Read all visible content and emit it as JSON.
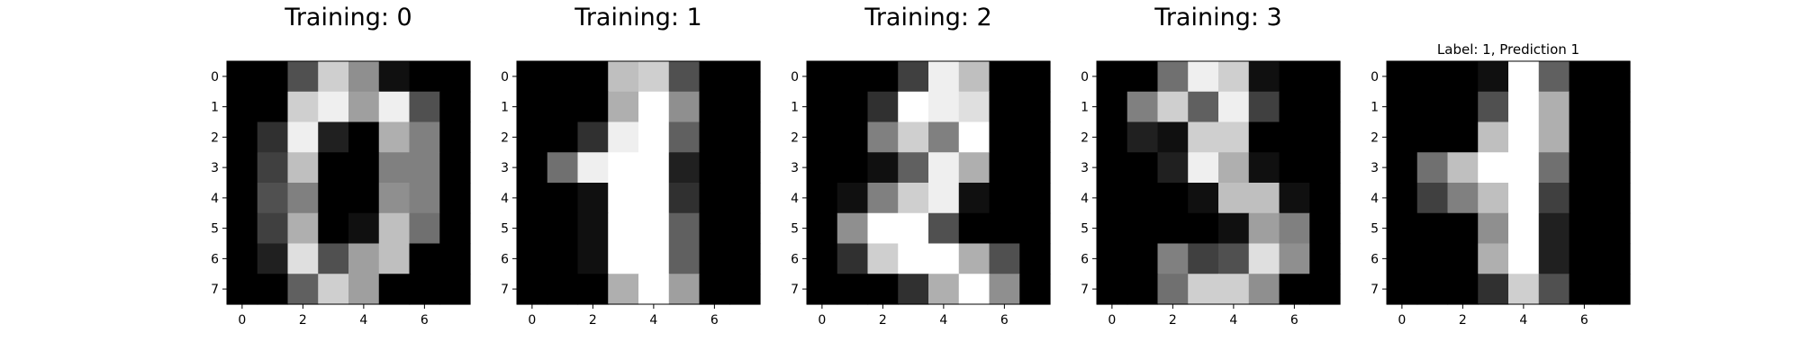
{
  "chart_data": [
    {
      "type": "heatmap",
      "title": "Training: 0",
      "colormap": "gray",
      "value_range": [
        0,
        16
      ],
      "x_ticks": [
        "0",
        "2",
        "4",
        "6"
      ],
      "y_ticks": [
        "0",
        "1",
        "2",
        "3",
        "4",
        "5",
        "6",
        "7"
      ],
      "values": [
        [
          0,
          0,
          5,
          13,
          9,
          1,
          0,
          0
        ],
        [
          0,
          0,
          13,
          15,
          10,
          15,
          5,
          0
        ],
        [
          0,
          3,
          15,
          2,
          0,
          11,
          8,
          0
        ],
        [
          0,
          4,
          12,
          0,
          0,
          8,
          8,
          0
        ],
        [
          0,
          5,
          8,
          0,
          0,
          9,
          8,
          0
        ],
        [
          0,
          4,
          11,
          0,
          1,
          12,
          7,
          0
        ],
        [
          0,
          2,
          14,
          5,
          10,
          12,
          0,
          0
        ],
        [
          0,
          0,
          6,
          13,
          10,
          0,
          0,
          0
        ]
      ]
    },
    {
      "type": "heatmap",
      "title": "Training: 1",
      "colormap": "gray",
      "value_range": [
        0,
        16
      ],
      "x_ticks": [
        "0",
        "2",
        "4",
        "6"
      ],
      "y_ticks": [
        "0",
        "1",
        "2",
        "3",
        "4",
        "5",
        "6",
        "7"
      ],
      "values": [
        [
          0,
          0,
          0,
          12,
          13,
          5,
          0,
          0
        ],
        [
          0,
          0,
          0,
          11,
          16,
          9,
          0,
          0
        ],
        [
          0,
          0,
          3,
          15,
          16,
          6,
          0,
          0
        ],
        [
          0,
          7,
          15,
          16,
          16,
          2,
          0,
          0
        ],
        [
          0,
          0,
          1,
          16,
          16,
          3,
          0,
          0
        ],
        [
          0,
          0,
          1,
          16,
          16,
          6,
          0,
          0
        ],
        [
          0,
          0,
          1,
          16,
          16,
          6,
          0,
          0
        ],
        [
          0,
          0,
          0,
          11,
          16,
          10,
          0,
          0
        ]
      ]
    },
    {
      "type": "heatmap",
      "title": "Training: 2",
      "colormap": "gray",
      "value_range": [
        0,
        16
      ],
      "x_ticks": [
        "0",
        "2",
        "4",
        "6"
      ],
      "y_ticks": [
        "0",
        "1",
        "2",
        "3",
        "4",
        "5",
        "6",
        "7"
      ],
      "values": [
        [
          0,
          0,
          0,
          4,
          15,
          12,
          0,
          0
        ],
        [
          0,
          0,
          3,
          16,
          15,
          14,
          0,
          0
        ],
        [
          0,
          0,
          8,
          13,
          8,
          16,
          0,
          0
        ],
        [
          0,
          0,
          1,
          6,
          15,
          11,
          0,
          0
        ],
        [
          0,
          1,
          8,
          13,
          15,
          1,
          0,
          0
        ],
        [
          0,
          9,
          16,
          16,
          5,
          0,
          0,
          0
        ],
        [
          0,
          3,
          13,
          16,
          16,
          11,
          5,
          0
        ],
        [
          0,
          0,
          0,
          3,
          11,
          16,
          9,
          0
        ]
      ]
    },
    {
      "type": "heatmap",
      "title": "Training: 3",
      "colormap": "gray",
      "value_range": [
        0,
        16
      ],
      "x_ticks": [
        "0",
        "2",
        "4",
        "6"
      ],
      "y_ticks": [
        "0",
        "1",
        "2",
        "3",
        "4",
        "5",
        "6",
        "7"
      ],
      "values": [
        [
          0,
          0,
          7,
          15,
          13,
          1,
          0,
          0
        ],
        [
          0,
          8,
          13,
          6,
          15,
          4,
          0,
          0
        ],
        [
          0,
          2,
          1,
          13,
          13,
          0,
          0,
          0
        ],
        [
          0,
          0,
          2,
          15,
          11,
          1,
          0,
          0
        ],
        [
          0,
          0,
          0,
          1,
          12,
          12,
          1,
          0
        ],
        [
          0,
          0,
          0,
          0,
          1,
          10,
          8,
          0
        ],
        [
          0,
          0,
          8,
          4,
          5,
          14,
          9,
          0
        ],
        [
          0,
          0,
          7,
          13,
          13,
          9,
          0,
          0
        ]
      ]
    },
    {
      "type": "heatmap",
      "title": "Label: 1, Prediction 1",
      "colormap": "gray",
      "value_range": [
        0,
        16
      ],
      "x_ticks": [
        "0",
        "2",
        "4",
        "6"
      ],
      "y_ticks": [
        "0",
        "1",
        "2",
        "3",
        "4",
        "5",
        "6",
        "7"
      ],
      "values": [
        [
          0,
          0,
          0,
          1,
          16,
          6,
          0,
          0
        ],
        [
          0,
          0,
          0,
          5,
          16,
          11,
          0,
          0
        ],
        [
          0,
          0,
          0,
          12,
          16,
          11,
          0,
          0
        ],
        [
          0,
          7,
          12,
          16,
          16,
          7,
          0,
          0
        ],
        [
          0,
          4,
          8,
          12,
          16,
          4,
          0,
          0
        ],
        [
          0,
          0,
          0,
          9,
          16,
          2,
          0,
          0
        ],
        [
          0,
          0,
          0,
          11,
          16,
          2,
          0,
          0
        ],
        [
          0,
          0,
          0,
          3,
          13,
          5,
          0,
          0
        ]
      ]
    }
  ]
}
